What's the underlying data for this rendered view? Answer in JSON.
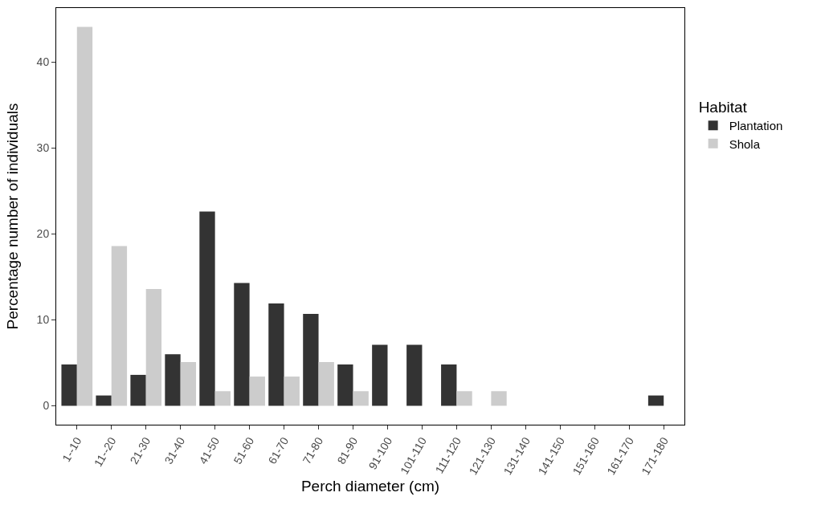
{
  "chart_data": {
    "type": "bar",
    "xlabel": "Perch diameter (cm)",
    "ylabel": "Percentage number of individuals",
    "legend_title": "Habitat",
    "categories": [
      "1--10",
      "11--20",
      "21-30",
      "31-40",
      "41-50",
      "51-60",
      "61-70",
      "71-80",
      "81-90",
      "91-100",
      "101-110",
      "111-120",
      "121-130",
      "131-140",
      "141-150",
      "151-160",
      "161-170",
      "171-180"
    ],
    "series": [
      {
        "name": "Plantation",
        "color": "#333333",
        "values": [
          4.8,
          1.2,
          3.6,
          6.0,
          22.6,
          14.3,
          11.9,
          10.7,
          4.8,
          7.1,
          7.1,
          4.8,
          0,
          0,
          0,
          0,
          0,
          1.2
        ]
      },
      {
        "name": "Shola",
        "color": "#cccccc",
        "values": [
          44.1,
          18.6,
          13.6,
          5.1,
          1.7,
          3.4,
          3.4,
          5.1,
          1.7,
          0,
          0,
          1.7,
          1.7,
          0,
          0,
          0,
          0,
          0
        ]
      }
    ],
    "ylim": [
      -2.2,
      46.3
    ],
    "yticks": [
      0,
      10,
      20,
      30,
      40
    ],
    "grid": false,
    "legend": "right"
  }
}
